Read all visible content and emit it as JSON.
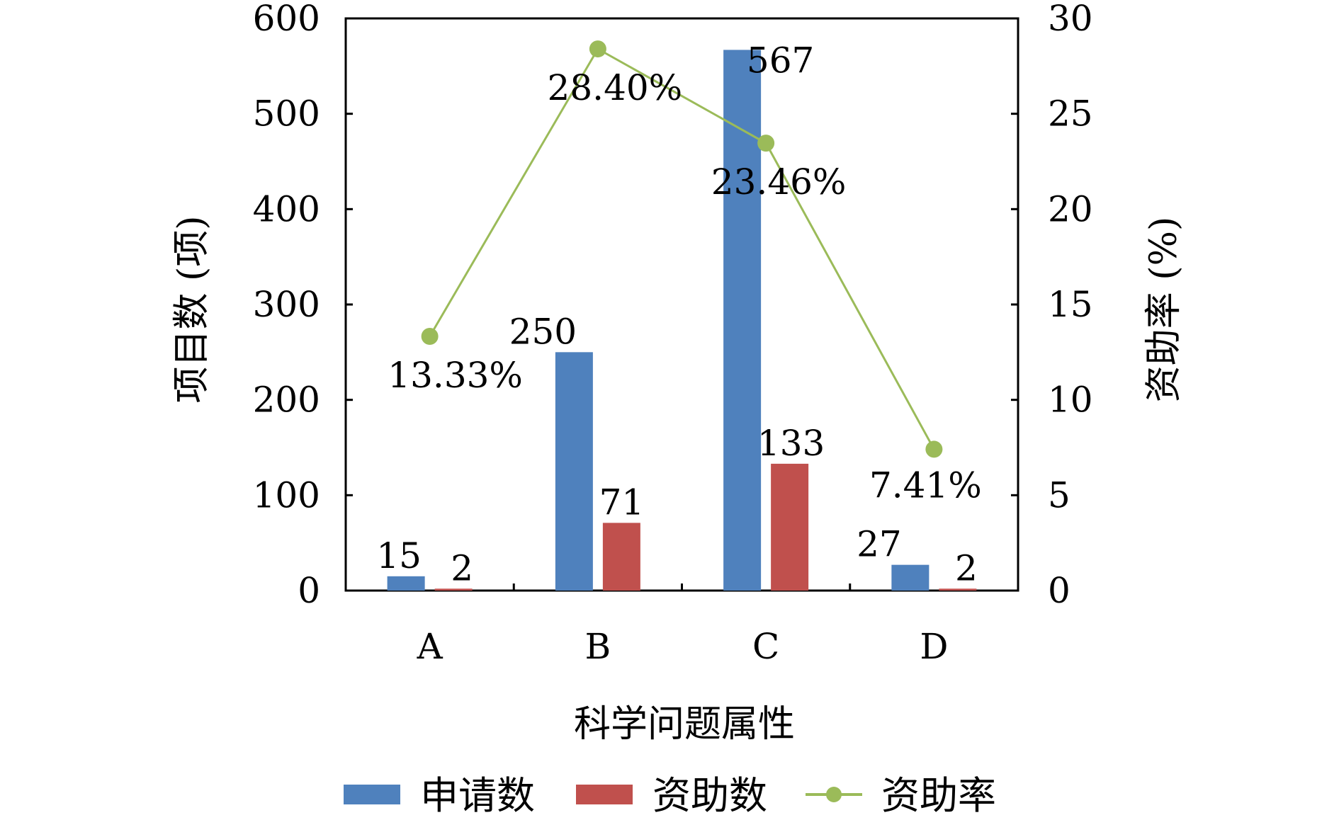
{
  "chart_data": {
    "type": "bar",
    "categories": [
      "A",
      "B",
      "C",
      "D"
    ],
    "xlabel": "科学问题属性",
    "ylabel": "项目数 (项)",
    "y2label": "资助率 (%)",
    "ylim": [
      0,
      600
    ],
    "y2lim": [
      0,
      30
    ],
    "yticks": [
      "0",
      "100",
      "200",
      "300",
      "400",
      "500",
      "600"
    ],
    "y2ticks": [
      "0",
      "5",
      "10",
      "15",
      "20",
      "25",
      "30"
    ],
    "grid": false,
    "legend_position": "bottom",
    "series": [
      {
        "name": "申请数",
        "kind": "bar",
        "axis": "left",
        "color": "#4f81bd",
        "values": [
          15,
          250,
          567,
          27
        ],
        "labels": [
          "15",
          "250",
          "567",
          "27"
        ]
      },
      {
        "name": "资助数",
        "kind": "bar",
        "axis": "left",
        "color": "#c0504d",
        "values": [
          2,
          71,
          133,
          2
        ],
        "labels": [
          "2",
          "71",
          "133",
          "2"
        ]
      },
      {
        "name": "资助率",
        "kind": "line",
        "axis": "right",
        "color": "#9bbb59",
        "values": [
          13.33,
          28.4,
          23.46,
          7.41
        ],
        "labels": [
          "13.33%",
          "28.40%",
          "23.46%",
          "7.41%"
        ]
      }
    ]
  }
}
